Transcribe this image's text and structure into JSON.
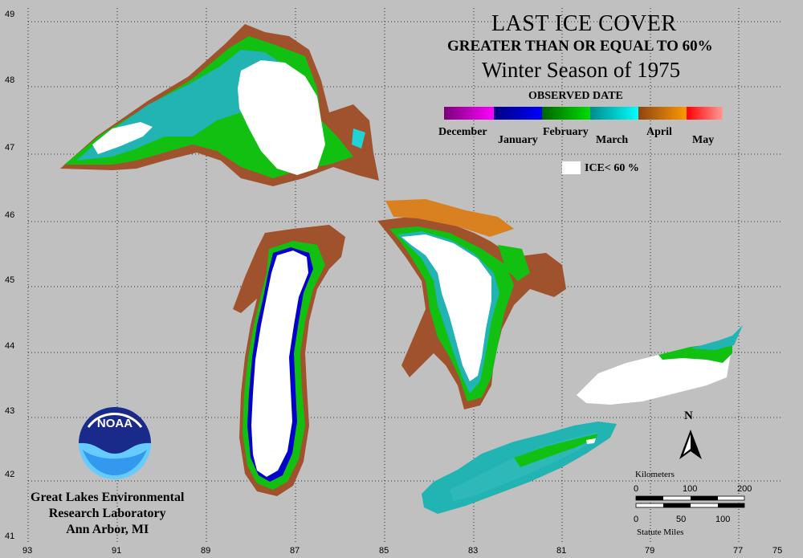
{
  "title": "LAST ICE COVER",
  "subtitle": "GREATER THAN OR EQUAL TO 60%",
  "season": "Winter Season of 1975",
  "legend": {
    "heading": "OBSERVED DATE",
    "months": [
      "December",
      "January",
      "February",
      "March",
      "April",
      "May"
    ],
    "gradients": [
      [
        "#7a007a",
        "#ff00ff"
      ],
      [
        "#000080",
        "#0000ff"
      ],
      [
        "#006400",
        "#00dd00"
      ],
      [
        "#008b8b",
        "#00ffff"
      ],
      [
        "#8b4513",
        "#ff9900"
      ],
      [
        "#ff0000",
        "#ff9999"
      ]
    ],
    "ice_label": "ICE< 60 %"
  },
  "latitudes": [
    "49",
    "48",
    "47",
    "46",
    "45",
    "44",
    "43",
    "42",
    "41"
  ],
  "longitudes": [
    "93",
    "91",
    "89",
    "87",
    "85",
    "83",
    "81",
    "79",
    "77",
    "75"
  ],
  "scale": {
    "km_label": "Kilometers",
    "km_ticks": [
      "0",
      "100",
      "200"
    ],
    "mi_label": "Statute Miles",
    "mi_ticks": [
      "0",
      "50",
      "100"
    ]
  },
  "north": "N",
  "logo_text": "NOAA",
  "lab": [
    "Great Lakes Environmental",
    "Research Laboratory",
    "Ann Arbor, MI"
  ],
  "colors": {
    "background": "#c0c0c0",
    "white_ice": "#ffffff",
    "brown": "#a0522d",
    "green": "#11c011",
    "teal": "#22b3b3",
    "blue": "#0000cc"
  }
}
